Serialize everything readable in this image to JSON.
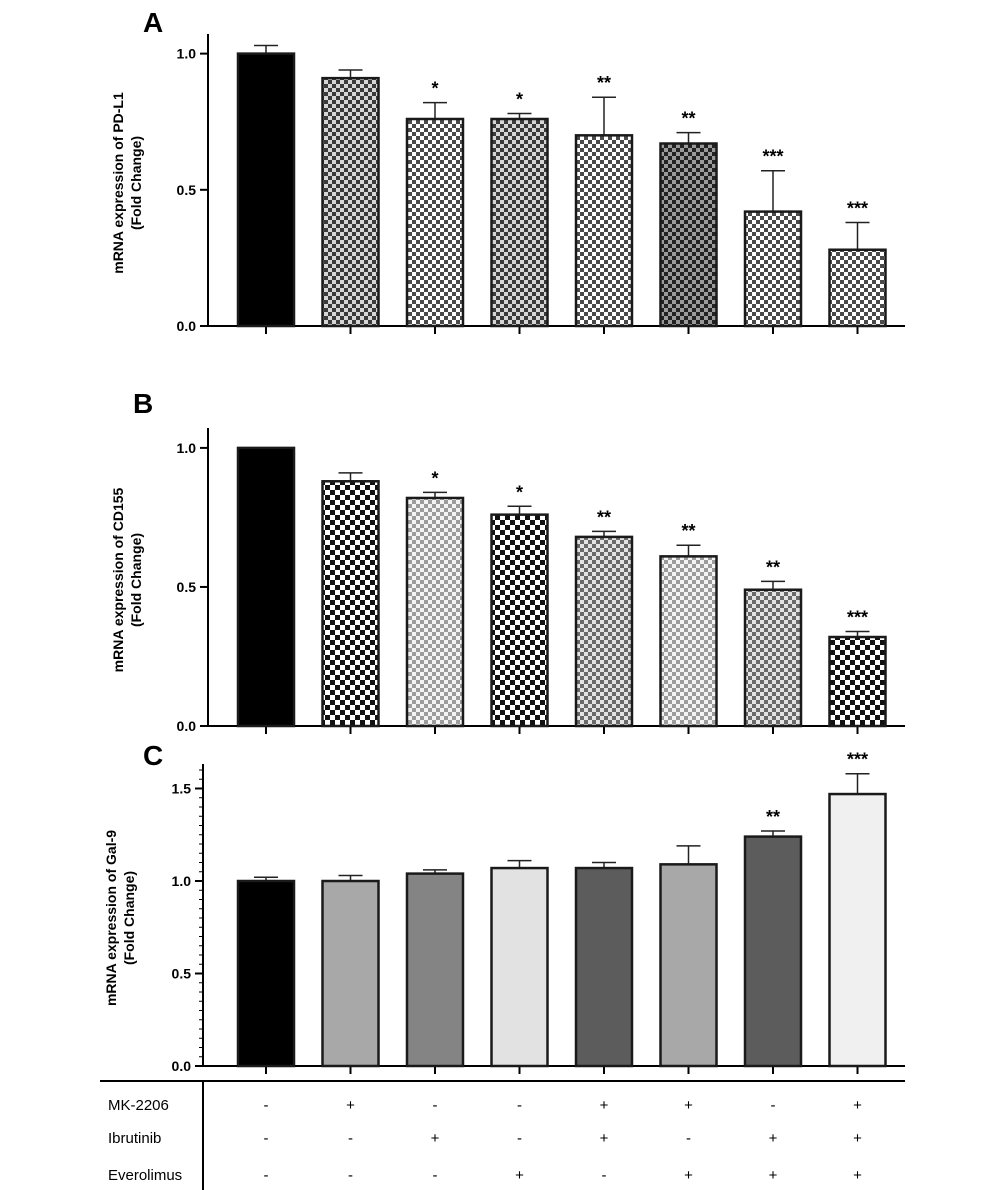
{
  "panels": [
    {
      "letter": "A",
      "ylabel_line1": "mRNA expression of PD-L1",
      "ylabel_line2": "(Fold Change)",
      "ylim": [
        0,
        1.05
      ],
      "yticks": [
        "0.0",
        "0.5",
        "1.0"
      ],
      "ytick_values": [
        0,
        0.5,
        1.0
      ],
      "minor_ticks": false,
      "bars": [
        {
          "value": 1.0,
          "error": 0.03,
          "sig": "",
          "fill": "solid-black"
        },
        {
          "value": 0.91,
          "error": 0.03,
          "sig": "",
          "fill": "checker-dark"
        },
        {
          "value": 0.76,
          "error": 0.06,
          "sig": "*",
          "fill": "checker-light"
        },
        {
          "value": 0.76,
          "error": 0.02,
          "sig": "*",
          "fill": "checker-dark"
        },
        {
          "value": 0.7,
          "error": 0.14,
          "sig": "**",
          "fill": "checker-light"
        },
        {
          "value": 0.67,
          "error": 0.04,
          "sig": "**",
          "fill": "checker-darker"
        },
        {
          "value": 0.42,
          "error": 0.15,
          "sig": "***",
          "fill": "checker-light"
        },
        {
          "value": 0.28,
          "error": 0.1,
          "sig": "***",
          "fill": "checker-light"
        }
      ]
    },
    {
      "letter": "B",
      "ylabel_line1": "mRNA expression of CD155",
      "ylabel_line2": "(Fold Change)",
      "ylim": [
        0,
        1.05
      ],
      "yticks": [
        "0.0",
        "0.5",
        "1.0"
      ],
      "ytick_values": [
        0,
        0.5,
        1.0
      ],
      "minor_ticks": false,
      "bars": [
        {
          "value": 1.0,
          "error": 0.0,
          "sig": "",
          "fill": "solid-black"
        },
        {
          "value": 0.88,
          "error": 0.03,
          "sig": "",
          "fill": "checker-bold"
        },
        {
          "value": 0.82,
          "error": 0.02,
          "sig": "*",
          "fill": "checker-pale"
        },
        {
          "value": 0.76,
          "error": 0.03,
          "sig": "*",
          "fill": "checker-bold"
        },
        {
          "value": 0.68,
          "error": 0.02,
          "sig": "**",
          "fill": "checker-mid"
        },
        {
          "value": 0.61,
          "error": 0.04,
          "sig": "**",
          "fill": "checker-pale"
        },
        {
          "value": 0.49,
          "error": 0.03,
          "sig": "**",
          "fill": "checker-mid"
        },
        {
          "value": 0.32,
          "error": 0.02,
          "sig": "***",
          "fill": "checker-bold"
        }
      ]
    },
    {
      "letter": "C",
      "ylabel_line1": "mRNA expression of Gal-9",
      "ylabel_line2": "(Fold Change)",
      "ylim": [
        0,
        1.6
      ],
      "yticks": [
        "0.0",
        "0.5",
        "1.0",
        "1.5"
      ],
      "ytick_values": [
        0,
        0.5,
        1.0,
        1.5
      ],
      "minor_ticks": true,
      "bars": [
        {
          "value": 1.0,
          "error": 0.02,
          "sig": "",
          "fill": "#000000"
        },
        {
          "value": 1.0,
          "error": 0.03,
          "sig": "",
          "fill": "#a8a8a8"
        },
        {
          "value": 1.04,
          "error": 0.02,
          "sig": "",
          "fill": "#848484"
        },
        {
          "value": 1.07,
          "error": 0.04,
          "sig": "",
          "fill": "#e2e2e2"
        },
        {
          "value": 1.07,
          "error": 0.03,
          "sig": "",
          "fill": "#5c5c5c"
        },
        {
          "value": 1.09,
          "error": 0.1,
          "sig": "",
          "fill": "#a8a8a8"
        },
        {
          "value": 1.24,
          "error": 0.03,
          "sig": "**",
          "fill": "#5c5c5c"
        },
        {
          "value": 1.47,
          "error": 0.11,
          "sig": "***",
          "fill": "#f0f0f0"
        }
      ]
    }
  ],
  "treatments": [
    {
      "name": "MK-2206",
      "signs": [
        "-",
        "+",
        "-",
        "-",
        "+",
        "+",
        "-",
        "+"
      ]
    },
    {
      "name": "Ibrutinib",
      "signs": [
        "-",
        "-",
        "+",
        "-",
        "+",
        "-",
        "+",
        "+"
      ]
    },
    {
      "name": "Everolimus",
      "signs": [
        "-",
        "-",
        "-",
        "+",
        "-",
        "+",
        "+",
        "+"
      ]
    }
  ],
  "chart_data": [
    {
      "type": "bar",
      "title": "",
      "ylabel": "mRNA expression of PD-L1 (Fold Change)",
      "ylim": [
        0,
        1.05
      ],
      "values": [
        1.0,
        0.91,
        0.76,
        0.76,
        0.7,
        0.67,
        0.42,
        0.28
      ],
      "errors": [
        0.03,
        0.03,
        0.06,
        0.02,
        0.14,
        0.04,
        0.15,
        0.1
      ],
      "significance": [
        "",
        "",
        "*",
        "*",
        "**",
        "**",
        "***",
        "***"
      ]
    },
    {
      "type": "bar",
      "title": "",
      "ylabel": "mRNA expression of CD155 (Fold Change)",
      "ylim": [
        0,
        1.05
      ],
      "values": [
        1.0,
        0.88,
        0.82,
        0.76,
        0.68,
        0.61,
        0.49,
        0.32
      ],
      "errors": [
        0.0,
        0.03,
        0.02,
        0.03,
        0.02,
        0.04,
        0.03,
        0.02
      ],
      "significance": [
        "",
        "",
        "*",
        "*",
        "**",
        "**",
        "**",
        "***"
      ]
    },
    {
      "type": "bar",
      "title": "",
      "ylabel": "mRNA expression of Gal-9 (Fold Change)",
      "ylim": [
        0,
        1.6
      ],
      "values": [
        1.0,
        1.0,
        1.04,
        1.07,
        1.07,
        1.09,
        1.24,
        1.47
      ],
      "errors": [
        0.02,
        0.03,
        0.02,
        0.04,
        0.03,
        0.1,
        0.03,
        0.11
      ],
      "significance": [
        "",
        "",
        "",
        "",
        "",
        "",
        "**",
        "***"
      ]
    }
  ]
}
